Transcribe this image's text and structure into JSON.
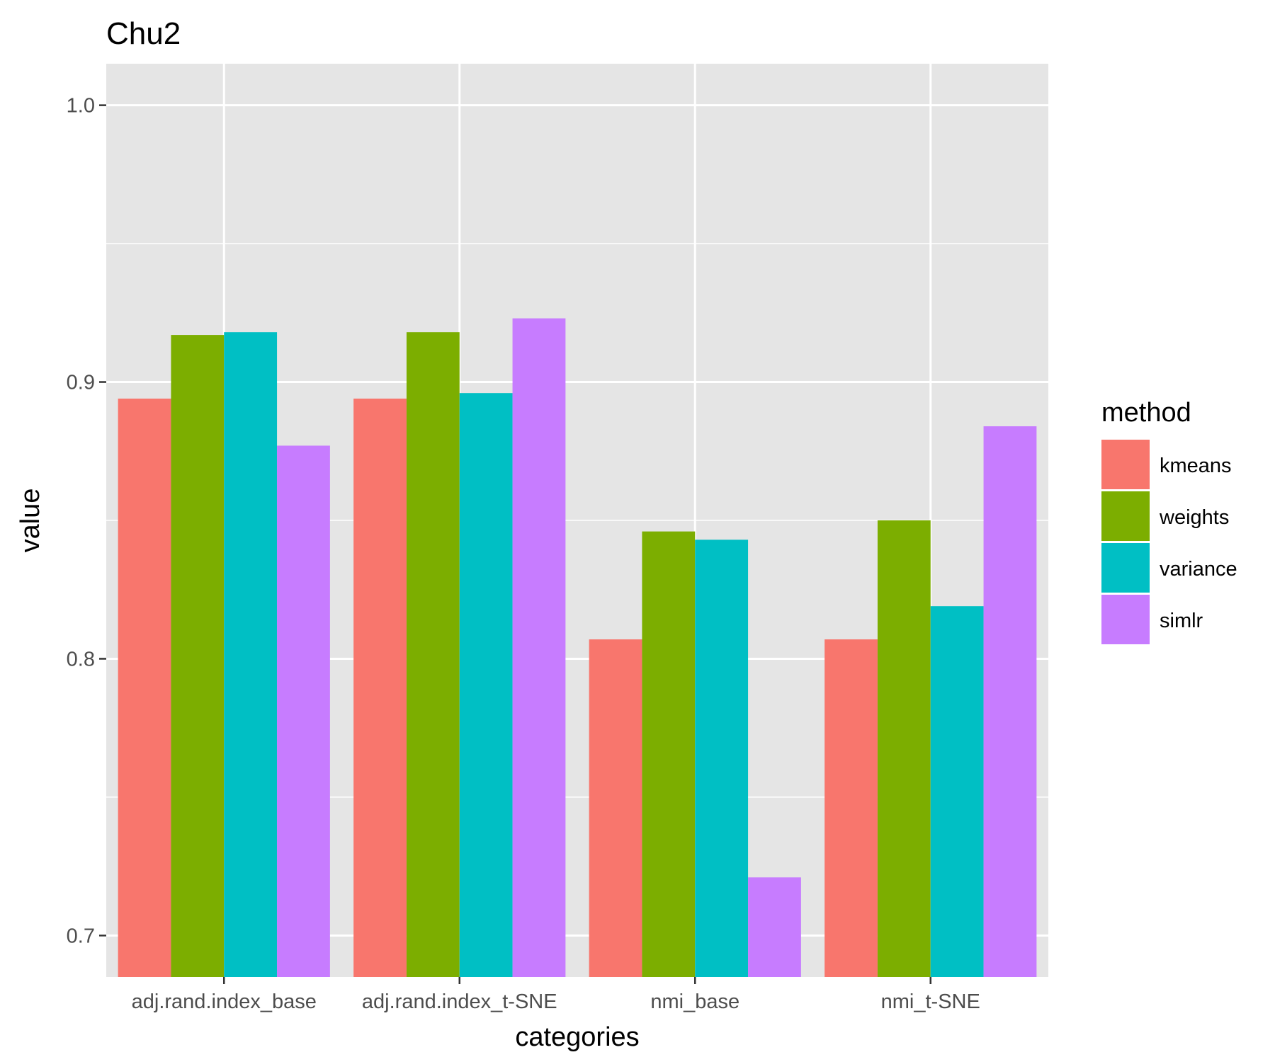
{
  "chart_data": {
    "type": "bar",
    "title": "Chu2",
    "xlabel": "categories",
    "ylabel": "value",
    "categories": [
      "adj.rand.index_base",
      "adj.rand.index_t-SNE",
      "nmi_base",
      "nmi_t-SNE"
    ],
    "ylim": [
      0.685,
      1.015
    ],
    "yticks": [
      0.7,
      0.8,
      0.9,
      1.0
    ],
    "ytick_labels": [
      "0.7",
      "0.8",
      "0.9",
      "1.0"
    ],
    "grid": true,
    "legend": {
      "title": "method",
      "position": "right"
    },
    "series": [
      {
        "name": "kmeans",
        "color": "#F8766D",
        "values": [
          0.894,
          0.894,
          0.807,
          0.807
        ]
      },
      {
        "name": "weights",
        "color": "#7CAE00",
        "values": [
          0.917,
          0.918,
          0.846,
          0.85
        ]
      },
      {
        "name": "variance",
        "color": "#00BFC4",
        "values": [
          0.918,
          0.896,
          0.843,
          0.819
        ]
      },
      {
        "name": "simlr",
        "color": "#C77CFF",
        "values": [
          0.877,
          0.923,
          0.721,
          0.884
        ]
      }
    ]
  }
}
